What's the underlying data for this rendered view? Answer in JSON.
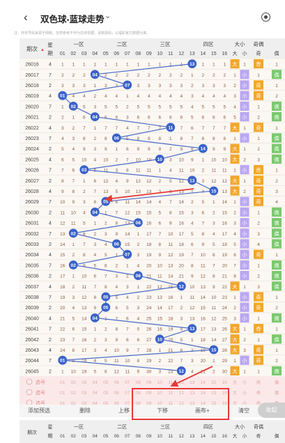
{
  "header": {
    "back_icon": "chevron-left-icon",
    "title": "双色球-蓝球走势",
    "title_caret": "⌄",
    "settings_icon": "settings-icon"
  },
  "note": "注：开奖号码来源于网络，仅供参考不作为兑奖依据。请核验码，以福彩官方数据为准。",
  "table": {
    "head_top": [
      "期次",
      "星期",
      "一区",
      "二区",
      "三区",
      "四区",
      "大小",
      "奇偶"
    ],
    "head_numbers": [
      "01",
      "02",
      "03",
      "04",
      "05",
      "06",
      "07",
      "08",
      "09",
      "10",
      "11",
      "12",
      "13",
      "14",
      "15",
      "16"
    ],
    "head_size": [
      "大",
      "小"
    ],
    "head_parity": [
      "奇",
      "偶"
    ],
    "rows": [
      {
        "issue": "26016",
        "week": "4",
        "blue": 13,
        "size": "大",
        "parity": "奇"
      },
      {
        "issue": "26017",
        "week": "7",
        "blue": 4,
        "size": "小",
        "parity": "偶"
      },
      {
        "issue": "26018",
        "week": "2",
        "blue": 7,
        "size": "小",
        "parity": "奇"
      },
      {
        "issue": "26019",
        "week": "4",
        "blue": 1,
        "size": "小",
        "parity": "奇"
      },
      {
        "issue": "26020",
        "week": "7",
        "blue": 2,
        "size": "小",
        "parity": "偶"
      },
      {
        "issue": "26021",
        "week": "2",
        "blue": 4,
        "size": "小",
        "parity": "偶"
      },
      {
        "issue": "26022",
        "week": "4",
        "blue": 11,
        "size": "大",
        "parity": "奇"
      },
      {
        "issue": "26023",
        "week": "7",
        "blue": 6,
        "size": "小",
        "parity": "偶"
      },
      {
        "issue": "26024",
        "week": "2",
        "blue": 14,
        "size": "大",
        "parity": "偶"
      },
      {
        "issue": "26025",
        "week": "4",
        "blue": 10,
        "size": "大",
        "parity": "偶"
      },
      {
        "issue": "26026",
        "week": "7",
        "blue": 3,
        "size": "小",
        "parity": "奇"
      },
      {
        "issue": "26027",
        "week": "2",
        "blue": 13,
        "size": "大",
        "parity": "奇"
      },
      {
        "issue": "26028",
        "week": "4",
        "blue": 15,
        "size": "大",
        "parity": "奇"
      },
      {
        "issue": "26029",
        "week": "7",
        "blue": 5,
        "size": "小",
        "parity": "奇"
      },
      {
        "issue": "26030",
        "week": "2",
        "blue": 4,
        "size": "小",
        "parity": "偶"
      },
      {
        "issue": "26031",
        "week": "4",
        "blue": 8,
        "size": "小",
        "parity": "偶"
      },
      {
        "issue": "26032",
        "week": "7",
        "blue": 2,
        "size": "小",
        "parity": "偶"
      },
      {
        "issue": "26033",
        "week": "2",
        "blue": 6,
        "size": "小",
        "parity": "偶"
      },
      {
        "issue": "26034",
        "week": "4",
        "blue": 7,
        "size": "小",
        "parity": "奇"
      },
      {
        "issue": "26035",
        "week": "7",
        "blue": 2,
        "size": "小",
        "parity": "偶"
      },
      {
        "issue": "26036",
        "week": "2",
        "blue": 8,
        "size": "小",
        "parity": "偶"
      },
      {
        "issue": "26037",
        "week": "4",
        "blue": 12,
        "size": "大",
        "parity": "偶"
      },
      {
        "issue": "26038",
        "week": "7",
        "blue": 5,
        "size": "小",
        "parity": "奇"
      },
      {
        "issue": "26039",
        "week": "2",
        "blue": 5,
        "size": "小",
        "parity": "奇"
      },
      {
        "issue": "26040",
        "week": "4",
        "blue": 4,
        "size": "小",
        "parity": "偶"
      },
      {
        "issue": "26041",
        "week": "7",
        "blue": 13,
        "size": "大",
        "parity": "奇"
      },
      {
        "issue": "26042",
        "week": "2",
        "blue": 10,
        "size": "大",
        "parity": "偶"
      },
      {
        "issue": "26043",
        "week": "4",
        "blue": 15,
        "size": "大",
        "parity": "奇"
      },
      {
        "issue": "26044",
        "week": "7",
        "blue": 1,
        "size": "小",
        "parity": "奇"
      },
      {
        "issue": "26045",
        "week": "2",
        "blue": 12,
        "size": "大",
        "parity": "偶"
      }
    ],
    "select_rows": [
      "选号",
      "选号",
      "选号"
    ]
  },
  "toolbar": {
    "add_prediction": "添加预选",
    "delete": "删除",
    "move_up": "上移",
    "move_down": "下移",
    "brush": "画布+",
    "clear": "清空",
    "collapse": "收起"
  },
  "colors": {
    "blue_ball": "#3a62c9",
    "line": "#4a6bc9",
    "number_text": "#8b5a3c",
    "size_big": "#f4a62a",
    "size_small": "#b9a7f0",
    "parity_odd": "#f4a62a",
    "parity_even": "#7bc96f",
    "annotation": "#e53935"
  }
}
